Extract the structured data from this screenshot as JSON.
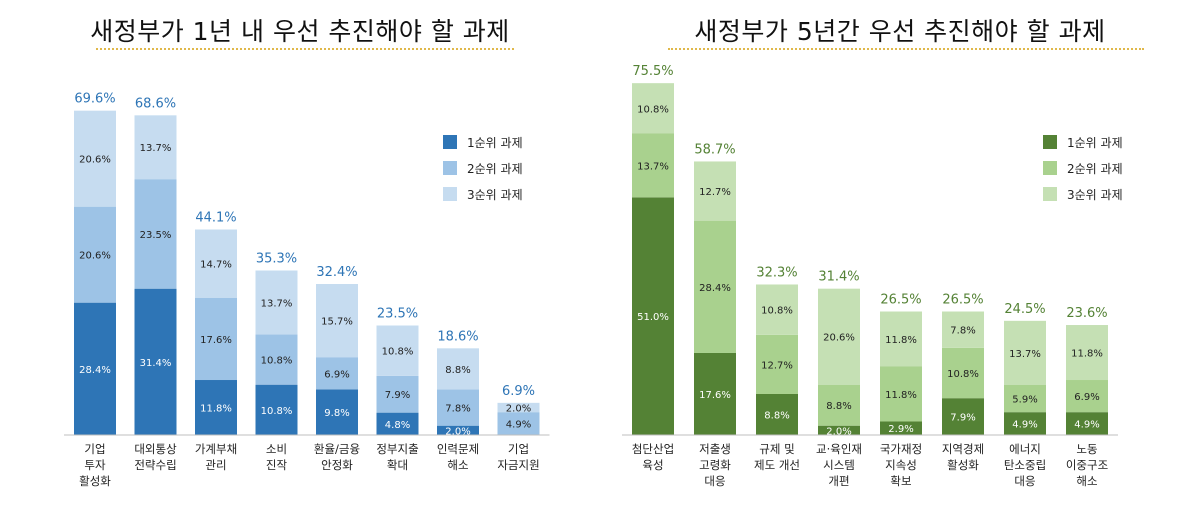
{
  "chart_data": [
    {
      "type": "bar",
      "stacked": true,
      "title": "새정부가 1년 내 우선 추진해야 할 과제",
      "categories": [
        [
          "기업",
          "투자",
          "활성화"
        ],
        [
          "대외통상",
          "전략수립"
        ],
        [
          "가계부채",
          "관리"
        ],
        [
          "소비",
          "진작"
        ],
        [
          "환율/금융",
          "안정화"
        ],
        [
          "정부지출",
          "확대"
        ],
        [
          "인력문제",
          "해소"
        ],
        [
          "기업",
          "자금지원"
        ]
      ],
      "totals": [
        "69.6%",
        "68.6%",
        "44.1%",
        "35.3%",
        "32.4%",
        "23.5%",
        "18.6%",
        "6.9%"
      ],
      "series": [
        {
          "name": "1순위 과제",
          "color": "#2e75b6",
          "values": [
            28.4,
            31.4,
            11.8,
            10.8,
            9.8,
            4.8,
            2.0,
            0
          ],
          "labels": [
            "28.4%",
            "31.4%",
            "11.8%",
            "10.8%",
            "9.8%",
            "4.8%",
            "2.0%",
            ""
          ]
        },
        {
          "name": "2순위 과제",
          "color": "#9dc3e6",
          "values": [
            20.6,
            23.5,
            17.6,
            10.8,
            6.9,
            7.9,
            7.8,
            4.9
          ],
          "labels": [
            "20.6%",
            "23.5%",
            "17.6%",
            "10.8%",
            "6.9%",
            "7.9%",
            "7.8%",
            "4.9%"
          ]
        },
        {
          "name": "3순위 과제",
          "color": "#c6dcf0",
          "values": [
            20.6,
            13.7,
            14.7,
            13.7,
            15.7,
            10.8,
            8.8,
            2.0
          ],
          "labels": [
            "20.6%",
            "13.7%",
            "14.7%",
            "13.7%",
            "15.7%",
            "10.8%",
            "8.8%",
            "2.0%"
          ]
        }
      ],
      "total_color": "#2e75b6",
      "ylim": [
        0,
        80
      ],
      "grid": false,
      "legend_position": "top-right"
    },
    {
      "type": "bar",
      "stacked": true,
      "title": "새정부가 5년간 우선 추진해야 할 과제",
      "categories": [
        [
          "첨단산업",
          "육성"
        ],
        [
          "저출생",
          "고령화",
          "대응"
        ],
        [
          "규제 및",
          "제도 개선"
        ],
        [
          "교·육인재",
          "시스템",
          "개편"
        ],
        [
          "국가재정",
          "지속성",
          "확보"
        ],
        [
          "지역경제",
          "활성화"
        ],
        [
          "에너지",
          "탄소중립",
          "대응"
        ],
        [
          "노동",
          "이중구조",
          "해소"
        ]
      ],
      "totals": [
        "75.5%",
        "58.7%",
        "32.3%",
        "31.4%",
        "26.5%",
        "26.5%",
        "24.5%",
        "23.6%"
      ],
      "series": [
        {
          "name": "1순위 과제",
          "color": "#548235",
          "values": [
            51.0,
            17.6,
            8.8,
            2.0,
            2.9,
            7.9,
            4.9,
            4.9
          ],
          "labels": [
            "51.0%",
            "17.6%",
            "8.8%",
            "2.0%",
            "2.9%",
            "7.9%",
            "4.9%",
            "4.9%"
          ]
        },
        {
          "name": "2순위 과제",
          "color": "#a9d18e",
          "values": [
            13.7,
            28.4,
            12.7,
            8.8,
            11.8,
            10.8,
            5.9,
            6.9
          ],
          "labels": [
            "13.7%",
            "28.4%",
            "12.7%",
            "8.8%",
            "11.8%",
            "10.8%",
            "5.9%",
            "6.9%"
          ]
        },
        {
          "name": "3순위 과제",
          "color": "#c5e0b4",
          "values": [
            10.8,
            12.7,
            10.8,
            20.6,
            11.8,
            7.8,
            13.7,
            11.8
          ],
          "labels": [
            "10.8%",
            "12.7%",
            "10.8%",
            "20.6%",
            "11.8%",
            "7.8%",
            "13.7%",
            "11.8%"
          ]
        }
      ],
      "total_color": "#548235",
      "ylim": [
        0,
        80
      ],
      "grid": false,
      "legend_position": "top-right"
    }
  ]
}
